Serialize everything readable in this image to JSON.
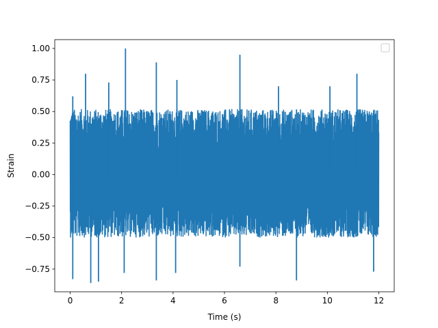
{
  "chart_data": {
    "type": "line",
    "title": "",
    "xlabel": "Time (s)",
    "ylabel": "Strain",
    "xlim": [
      -0.6,
      12.6
    ],
    "ylim": [
      -0.93,
      1.07
    ],
    "x_ticks": [
      0,
      2,
      4,
      6,
      8,
      10,
      12
    ],
    "x_tick_labels": [
      "0",
      "2",
      "4",
      "6",
      "8",
      "10",
      "12"
    ],
    "y_ticks": [
      -0.75,
      -0.5,
      -0.25,
      0.0,
      0.25,
      0.5,
      0.75,
      1.0
    ],
    "y_tick_labels": [
      "−0.75",
      "−0.50",
      "−0.25",
      "0.00",
      "0.25",
      "0.50",
      "0.75",
      "1.00"
    ],
    "grid": false,
    "legend": {
      "placement": "upper right",
      "entries": []
    },
    "series": [
      {
        "color": "#1f77b4",
        "x_range": [
          0,
          12
        ],
        "envelope_upper": 0.57,
        "envelope_lower": -0.55,
        "peaks": [
          {
            "x": 0.1,
            "y": 0.62
          },
          {
            "x": 0.6,
            "y": 0.8
          },
          {
            "x": 1.5,
            "y": 0.73
          },
          {
            "x": 2.15,
            "y": 1.0
          },
          {
            "x": 3.35,
            "y": 0.89
          },
          {
            "x": 4.15,
            "y": 0.75
          },
          {
            "x": 6.6,
            "y": 0.95
          },
          {
            "x": 8.1,
            "y": 0.7
          },
          {
            "x": 10.1,
            "y": 0.7
          },
          {
            "x": 11.15,
            "y": 0.8
          }
        ],
        "troughs": [
          {
            "x": 0.1,
            "y": -0.83
          },
          {
            "x": 0.8,
            "y": -0.86
          },
          {
            "x": 1.1,
            "y": -0.85
          },
          {
            "x": 2.1,
            "y": -0.78
          },
          {
            "x": 3.35,
            "y": -0.84
          },
          {
            "x": 4.1,
            "y": -0.78
          },
          {
            "x": 6.6,
            "y": -0.73
          },
          {
            "x": 8.8,
            "y": -0.84
          },
          {
            "x": 11.8,
            "y": -0.77
          }
        ]
      }
    ]
  }
}
